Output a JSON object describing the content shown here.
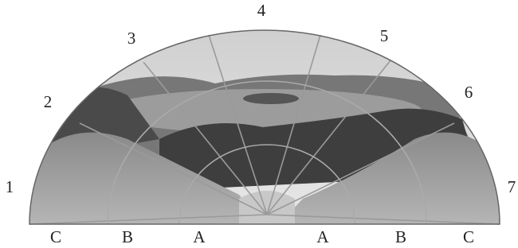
{
  "figure": {
    "direction_labels": [
      "1",
      "2",
      "3",
      "4",
      "5",
      "6",
      "7"
    ],
    "zone_labels": [
      "C",
      "B",
      "A",
      "A",
      "B",
      "C"
    ]
  }
}
